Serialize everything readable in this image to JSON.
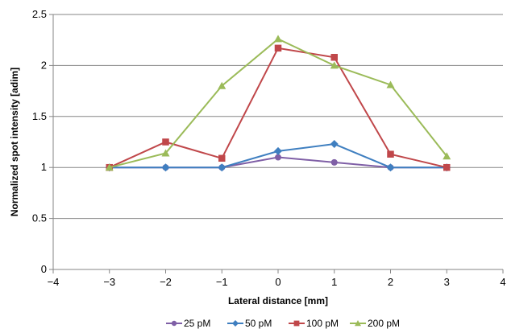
{
  "chart_data": {
    "type": "line",
    "title": "",
    "xlabel": "Lateral distance [mm]",
    "ylabel": "Normalized spot intensity [adim]",
    "xlim": [
      -4,
      4
    ],
    "ylim": [
      0,
      2.5
    ],
    "xticks": [
      -4,
      -3,
      -2,
      -1,
      0,
      1,
      2,
      3,
      4
    ],
    "xtick_labels": [
      "−4",
      "−3",
      "−2",
      "−1",
      "0",
      "1",
      "2",
      "3",
      "4"
    ],
    "yticks": [
      0,
      0.5,
      1,
      1.5,
      2,
      2.5
    ],
    "ytick_labels": [
      "0",
      "0.5",
      "1",
      "1.5",
      "2",
      "2.5"
    ],
    "grid": "horizontal",
    "legend_position": "bottom",
    "x": [
      -3,
      -2,
      -1,
      0,
      1,
      2,
      3
    ],
    "series": [
      {
        "name": "25 pM",
        "color": "#7f5fa6",
        "marker": "circle",
        "values": [
          1.0,
          1.0,
          1.0,
          1.1,
          1.05,
          1.0,
          1.0
        ]
      },
      {
        "name": "50 pM",
        "color": "#3f7fc0",
        "marker": "diamond",
        "values": [
          1.0,
          1.0,
          1.0,
          1.16,
          1.23,
          1.0,
          1.0
        ]
      },
      {
        "name": "100 pM",
        "color": "#c0474a",
        "marker": "square",
        "values": [
          1.0,
          1.25,
          1.09,
          2.17,
          2.08,
          1.13,
          1.0
        ]
      },
      {
        "name": "200 pM",
        "color": "#9bbb59",
        "marker": "triangle",
        "values": [
          1.0,
          1.14,
          1.8,
          2.26,
          2.0,
          1.81,
          1.11
        ]
      }
    ]
  }
}
